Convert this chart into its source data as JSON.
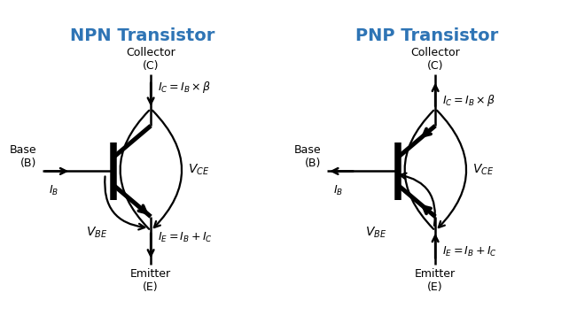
{
  "title_npn": "NPN Transistor",
  "title_pnp": "PNP Transistor",
  "title_color": "#2E74B5",
  "title_fontsize": 14,
  "label_fontsize": 9,
  "formula_fontsize": 9,
  "line_color": "black",
  "line_width": 1.8,
  "bg_color": "white",
  "collector_label": "Collector\n(C)",
  "base_label": "Base\n(B)",
  "emitter_label": "Emitter\n(E)",
  "ic_formula": "$I_C = I_B \\times \\beta$",
  "ie_formula": "$I_E = I_B + I_C$",
  "ib_label": "$I_B$",
  "vce_label": "$V_{CE}$",
  "vbe_label": "$V_{BE}$"
}
